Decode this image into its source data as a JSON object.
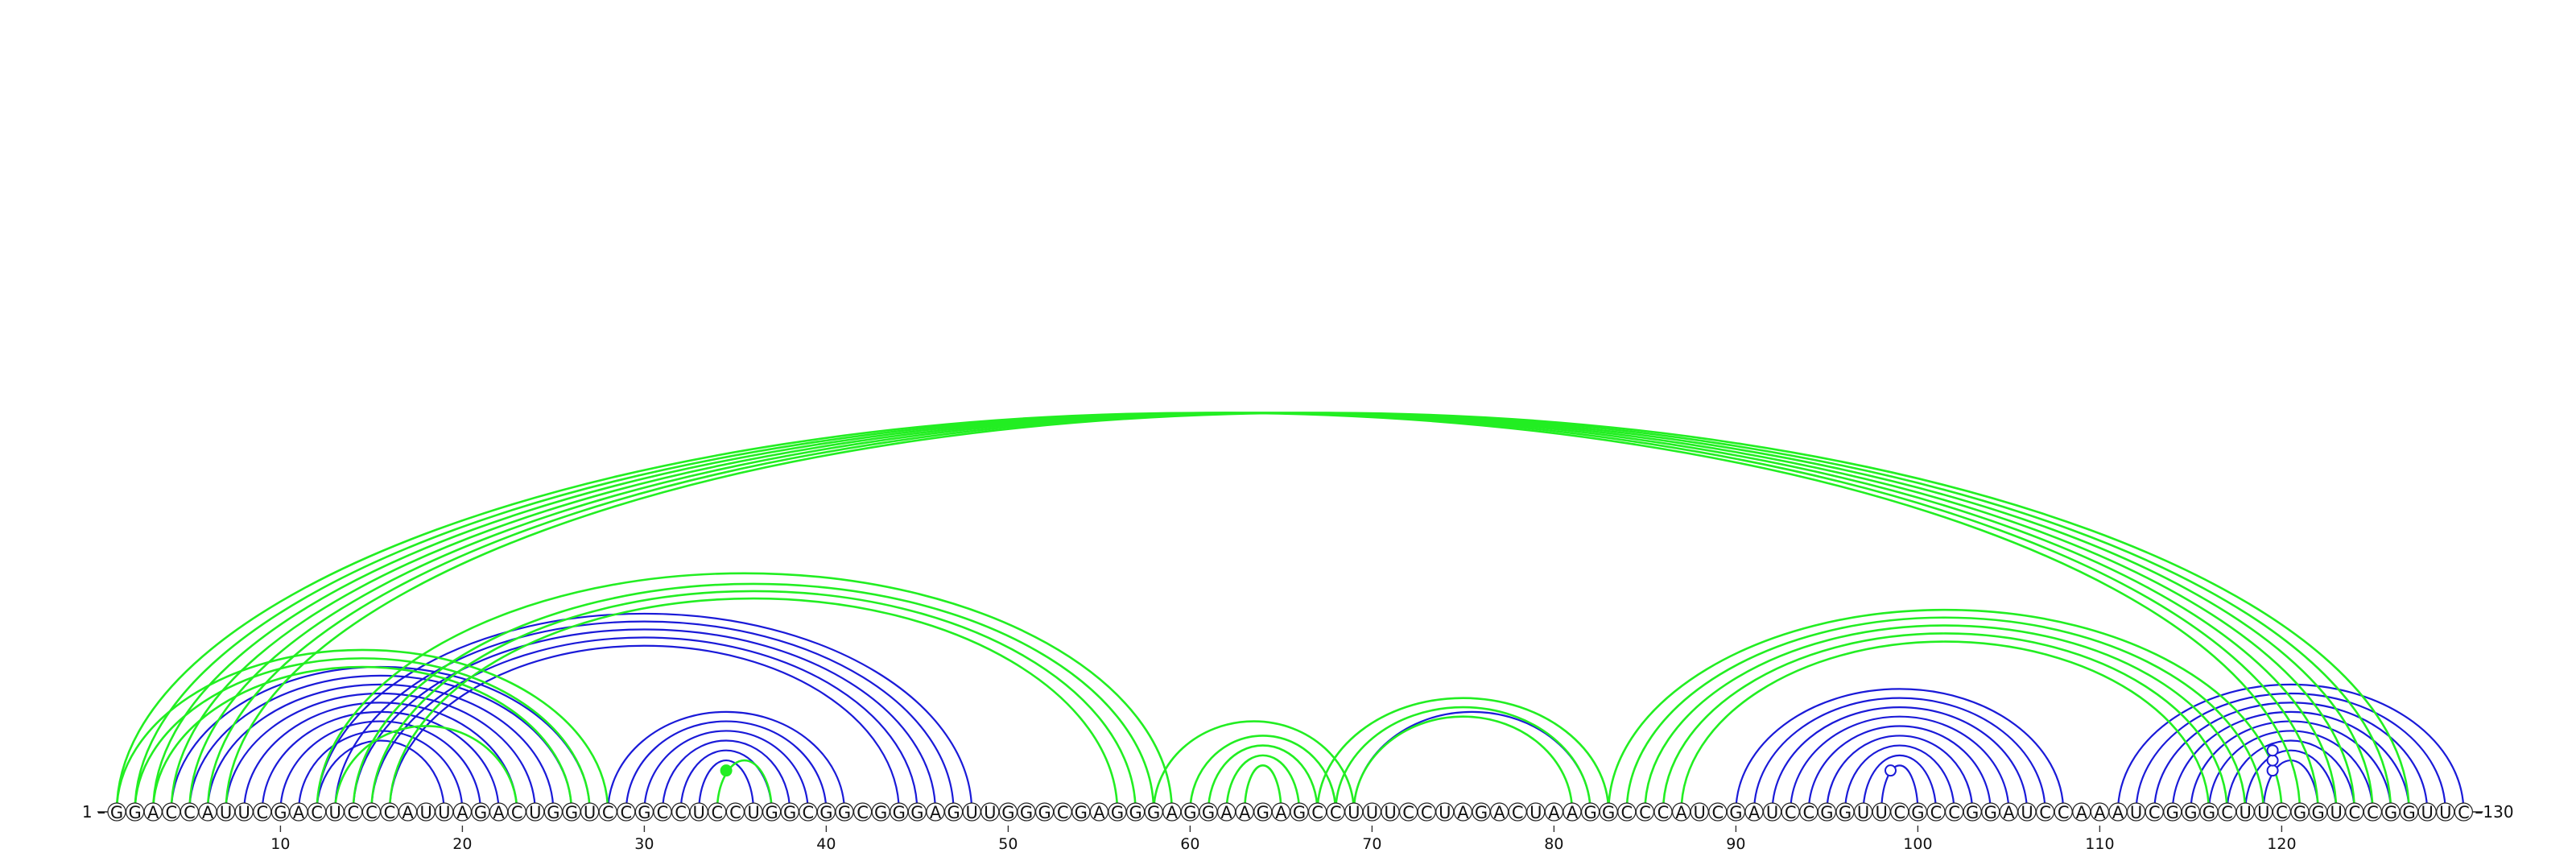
{
  "sequence": "GGACCAUUCGACUCCCAUUAGACUGGUCCGCCUCCUGGCGGCGGGAGUUGGGCGAGGGAGGAAGAGCCUUUCCUAGACUAAGGCCCAUCGAUCCGGUUCGCCGGAUCCAAAUCGGGCUUCGGUCCGGUUC",
  "start_label": "1 –",
  "end_label": "–130",
  "ticks": [
    10,
    20,
    30,
    40,
    50,
    60,
    70,
    80,
    90,
    100,
    110,
    120
  ],
  "colors": {
    "green": "#22ee22",
    "blue": "#1a1ad8",
    "circle_stroke": "#222222",
    "text": "#111111"
  },
  "arcs": {
    "green": [
      [
        1,
        121
      ],
      [
        2,
        122
      ],
      [
        3,
        123
      ],
      [
        4,
        124
      ],
      [
        5,
        125
      ],
      [
        6,
        126
      ],
      [
        7,
        127
      ],
      [
        1,
        28
      ],
      [
        2,
        27
      ],
      [
        3,
        26
      ],
      [
        12,
        59
      ],
      [
        14,
        58
      ],
      [
        15,
        57
      ],
      [
        16,
        56
      ],
      [
        13,
        23
      ],
      [
        34,
        37
      ],
      [
        58,
        69
      ],
      [
        60,
        68
      ],
      [
        61,
        67
      ],
      [
        62,
        66
      ],
      [
        63,
        65
      ],
      [
        67,
        83
      ],
      [
        68,
        82
      ],
      [
        69,
        81
      ],
      [
        83,
        120
      ],
      [
        84,
        119
      ],
      [
        85,
        118
      ],
      [
        86,
        117
      ],
      [
        87,
        116
      ]
    ],
    "blue": [
      [
        4,
        27
      ],
      [
        5,
        26
      ],
      [
        6,
        25
      ],
      [
        7,
        24
      ],
      [
        8,
        23
      ],
      [
        9,
        22
      ],
      [
        10,
        21
      ],
      [
        11,
        20
      ],
      [
        12,
        19
      ],
      [
        12,
        48
      ],
      [
        13,
        47
      ],
      [
        14,
        46
      ],
      [
        15,
        45
      ],
      [
        16,
        44
      ],
      [
        28,
        41
      ],
      [
        29,
        40
      ],
      [
        30,
        39
      ],
      [
        31,
        38
      ],
      [
        32,
        37
      ],
      [
        33,
        36
      ],
      [
        69,
        82
      ],
      [
        90,
        108
      ],
      [
        91,
        107
      ],
      [
        92,
        106
      ],
      [
        93,
        105
      ],
      [
        94,
        104
      ],
      [
        95,
        103
      ],
      [
        96,
        102
      ],
      [
        97,
        101
      ],
      [
        98,
        100
      ],
      [
        111,
        130
      ],
      [
        112,
        129
      ],
      [
        113,
        128
      ],
      [
        114,
        127
      ],
      [
        115,
        126
      ],
      [
        116,
        125
      ],
      [
        117,
        124
      ],
      [
        118,
        123
      ],
      [
        119,
        122
      ]
    ]
  },
  "markers": [
    {
      "at": 34.5,
      "level": 1,
      "fill": "green"
    },
    {
      "at": 98.5,
      "level": 1,
      "fill": "white"
    },
    {
      "at": 119.5,
      "level": 1,
      "fill": "white"
    },
    {
      "at": 119.5,
      "level": 3,
      "fill": "white"
    },
    {
      "at": 119.5,
      "level": 5,
      "fill": "white"
    }
  ]
}
